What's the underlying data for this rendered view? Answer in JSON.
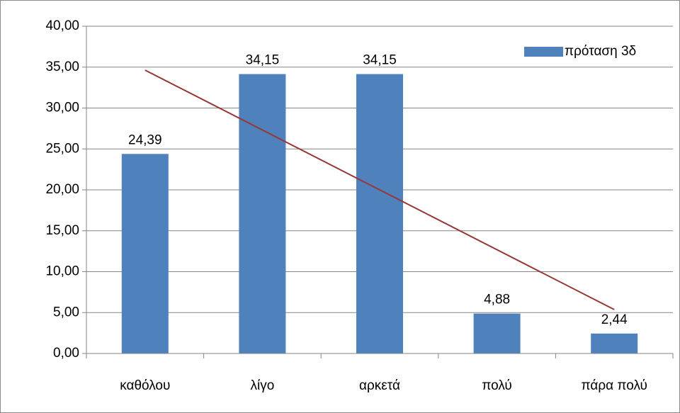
{
  "chart_data": {
    "type": "bar",
    "categories": [
      "καθόλου",
      "λίγο",
      "αρκετά",
      "πολύ",
      "πάρα πολύ"
    ],
    "series": [
      {
        "name": "πρόταση 3δ",
        "values": [
          24.39,
          34.15,
          34.15,
          4.88,
          2.44
        ],
        "color": "#4f81bd"
      }
    ],
    "data_labels": [
      "24,39",
      "34,15",
      "34,15",
      "4,88",
      "2,44"
    ],
    "y_tick_labels": [
      "0,00",
      "5,00",
      "10,00",
      "15,00",
      "20,00",
      "25,00",
      "30,00",
      "35,00",
      "40,00"
    ],
    "y_ticks": [
      0,
      5,
      10,
      15,
      20,
      25,
      30,
      35,
      40
    ],
    "ylim": [
      0,
      40
    ],
    "grid": true,
    "gridline_color": "#868686",
    "legend_position": "top-right",
    "trendline": {
      "type": "linear",
      "color": "#953735"
    }
  }
}
